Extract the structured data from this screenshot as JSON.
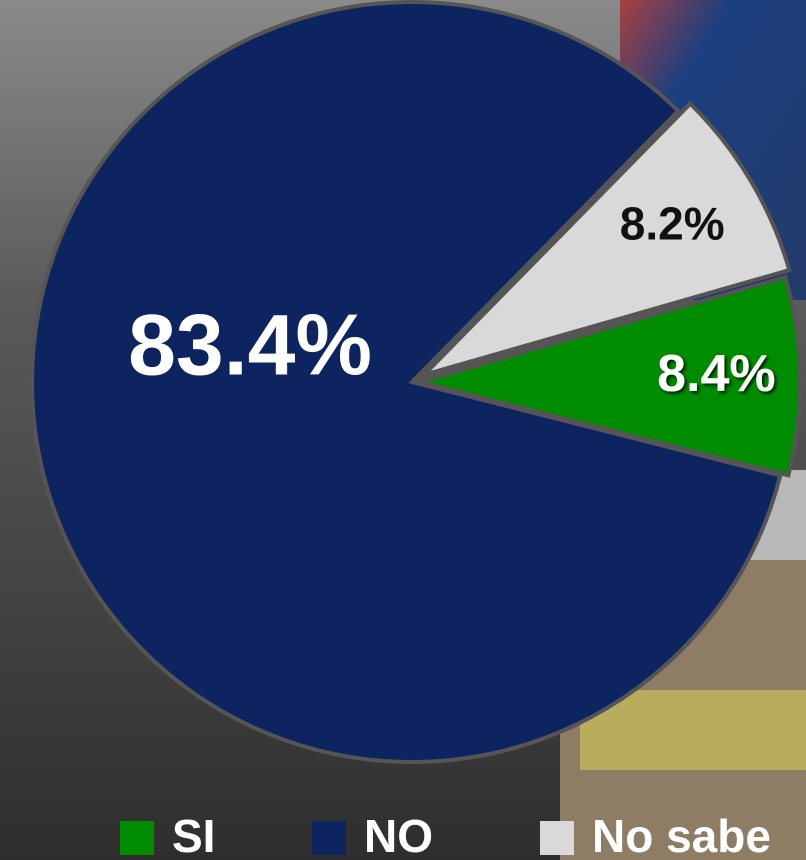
{
  "chart_data": {
    "type": "pie",
    "categories": [
      "SI",
      "NO",
      "No sabe"
    ],
    "values": [
      8.4,
      83.4,
      8.2
    ],
    "value_labels": [
      "8.4%",
      "83.4%",
      "8.2%"
    ],
    "colors": [
      "#008c00",
      "#0d2460",
      "#d9d9d9"
    ],
    "legend": "bottom"
  }
}
